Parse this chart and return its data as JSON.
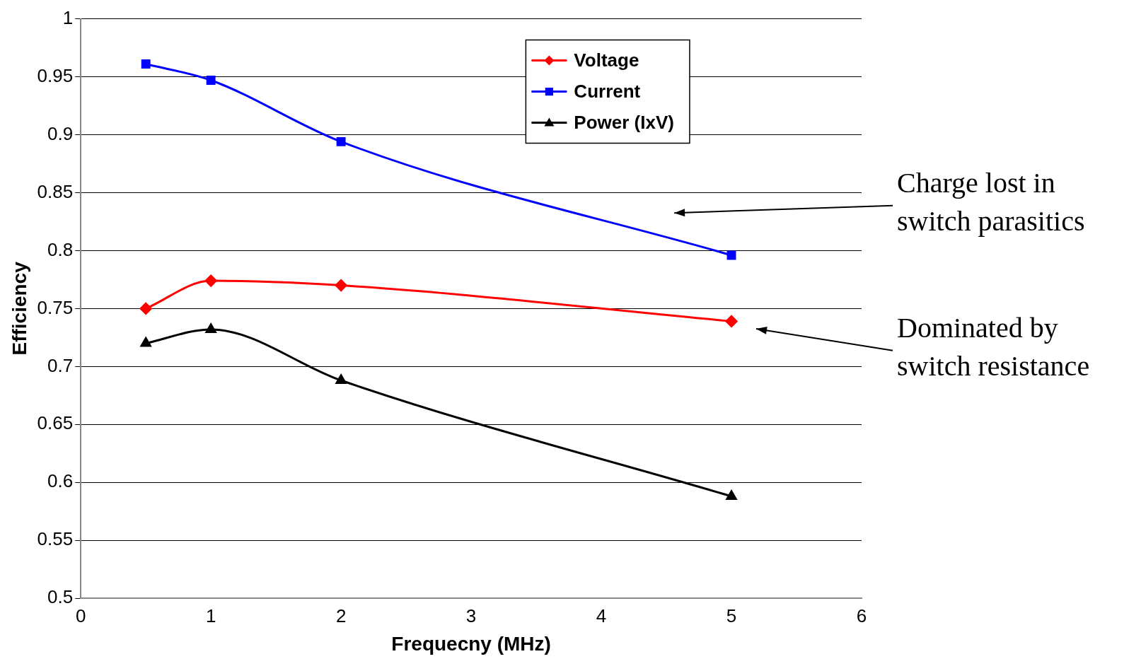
{
  "chart_data": {
    "type": "line",
    "xlabel": "Frequecny (MHz)",
    "ylabel": "Efficiency",
    "x": [
      0.5,
      1,
      2,
      5
    ],
    "series": [
      {
        "name": "Voltage",
        "color": "#ff0000",
        "marker": "diamond",
        "values": [
          0.75,
          0.774,
          0.77,
          0.739
        ]
      },
      {
        "name": "Current",
        "color": "#0000ff",
        "marker": "square",
        "values": [
          0.961,
          0.947,
          0.894,
          0.796
        ]
      },
      {
        "name": "Power (IxV)",
        "color": "#000000",
        "marker": "triangle",
        "values": [
          0.72,
          0.732,
          0.688,
          0.588
        ]
      }
    ],
    "xlim": [
      0,
      6
    ],
    "xticks": [
      0,
      1,
      2,
      3,
      4,
      5,
      6
    ],
    "ylim": [
      0.5,
      1
    ],
    "yticks": [
      0.5,
      0.55,
      0.6,
      0.65,
      0.7,
      0.75,
      0.8,
      0.85,
      0.9,
      0.95,
      1
    ],
    "grid": "y",
    "legend": "top",
    "annotations": [
      "Charge lost in switch parasitics",
      "Dominated by switch resistance"
    ]
  }
}
